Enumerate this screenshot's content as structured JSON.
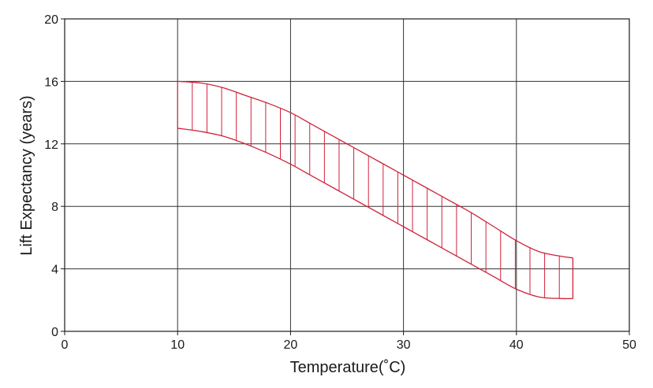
{
  "chart_data": {
    "type": "area",
    "xlabel": "Temperature(˚C)",
    "ylabel": "Lift Expectancy  (years)",
    "xlim": [
      0,
      50
    ],
    "ylim": [
      0,
      20
    ],
    "x_ticks": [
      "0",
      "10",
      "20",
      "30",
      "40",
      "50"
    ],
    "y_ticks": [
      "0",
      "4",
      "8",
      "12",
      "16",
      "20"
    ],
    "grid": true,
    "band_color": "#d0213a",
    "series": [
      {
        "values": [
          {
            "x": 10,
            "y": 16.0
          },
          {
            "x": 12,
            "y": 15.9
          },
          {
            "x": 14,
            "y": 15.6
          },
          {
            "x": 16,
            "y": 15.1
          },
          {
            "x": 18,
            "y": 14.6
          },
          {
            "x": 20,
            "y": 14.0
          },
          {
            "x": 22,
            "y": 13.2
          },
          {
            "x": 24,
            "y": 12.4
          },
          {
            "x": 26,
            "y": 11.6
          },
          {
            "x": 28,
            "y": 10.8
          },
          {
            "x": 30,
            "y": 10.0
          },
          {
            "x": 32,
            "y": 9.2
          },
          {
            "x": 34,
            "y": 8.4
          },
          {
            "x": 36,
            "y": 7.6
          },
          {
            "x": 38,
            "y": 6.7
          },
          {
            "x": 40,
            "y": 5.8
          },
          {
            "x": 42,
            "y": 5.1
          },
          {
            "x": 44,
            "y": 4.8
          },
          {
            "x": 45,
            "y": 4.7
          }
        ]
      },
      {
        "values": [
          {
            "x": 10,
            "y": 13.0
          },
          {
            "x": 12,
            "y": 12.8
          },
          {
            "x": 14,
            "y": 12.5
          },
          {
            "x": 16,
            "y": 12.0
          },
          {
            "x": 18,
            "y": 11.4
          },
          {
            "x": 20,
            "y": 10.7
          },
          {
            "x": 22,
            "y": 9.9
          },
          {
            "x": 24,
            "y": 9.1
          },
          {
            "x": 26,
            "y": 8.3
          },
          {
            "x": 28,
            "y": 7.5
          },
          {
            "x": 30,
            "y": 6.7
          },
          {
            "x": 32,
            "y": 5.9
          },
          {
            "x": 34,
            "y": 5.1
          },
          {
            "x": 36,
            "y": 4.3
          },
          {
            "x": 38,
            "y": 3.5
          },
          {
            "x": 40,
            "y": 2.7
          },
          {
            "x": 42,
            "y": 2.2
          },
          {
            "x": 44,
            "y": 2.1
          },
          {
            "x": 45,
            "y": 2.1
          }
        ]
      }
    ],
    "hatch_spacing": 1.3
  }
}
